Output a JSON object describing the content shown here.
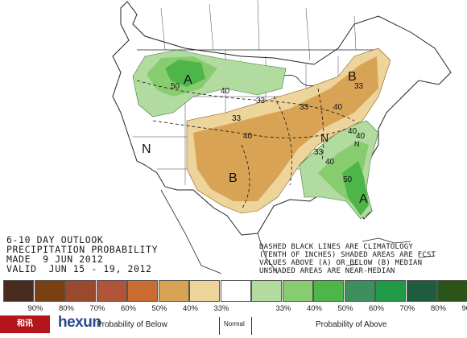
{
  "outlook": {
    "line1": "6-10 DAY OUTLOOK",
    "line2": "PRECIPITATION PROBABILITY",
    "line3": "MADE  9 JUN 2012",
    "line4": "VALID  JUN 15 - 19, 2012"
  },
  "notes": {
    "line1": "DASHED BLACK LINES ARE CLIMATOLOGY",
    "line2": "(TENTH OF INCHES) SHADED AREAS ARE FCST",
    "line3": "VALUES ABOVE (A) OR BELOW (B) MEDIAN",
    "line4": "UNSHADED AREAS ARE NEAR-MEDIAN"
  },
  "map_labels": {
    "a_north": "A",
    "a_southeast": "A",
    "b_northeast": "B",
    "b_plains": "B",
    "n_west": "N",
    "n_midsouth": "N",
    "n_southeast": "N",
    "v50a": "50",
    "v40a": "40",
    "v33a": "33",
    "v33b": "33",
    "v40b": "40",
    "v33c": "33",
    "v40c": "40",
    "v33d": "33",
    "v40d": "40",
    "v40e": "40",
    "v33e": "33",
    "v40f": "40",
    "v50b": "50"
  },
  "legend": {
    "below_colors": [
      "#4a2b1f",
      "#7a3f12",
      "#9a4a2c",
      "#b0553a",
      "#c96c30",
      "#d9a356",
      "#ecd49a"
    ],
    "normal_color": "#ffffff",
    "above_colors": [
      "#b2dba0",
      "#88cc70",
      "#4eb548",
      "#3e8f5e",
      "#229944",
      "#1f5b3d",
      "#2b5418"
    ],
    "below_pcts": [
      "90%",
      "80%",
      "70%",
      "60%",
      "50%",
      "40%",
      "33%"
    ],
    "above_pcts": [
      "33%",
      "40%",
      "50%",
      "60%",
      "70%",
      "80%",
      "90%"
    ],
    "below_label": "Probability of Below",
    "normal_label": "Normal",
    "above_label": "Probability of Above"
  },
  "watermark": {
    "logo_text": "和讯",
    "brand": "hexun"
  }
}
